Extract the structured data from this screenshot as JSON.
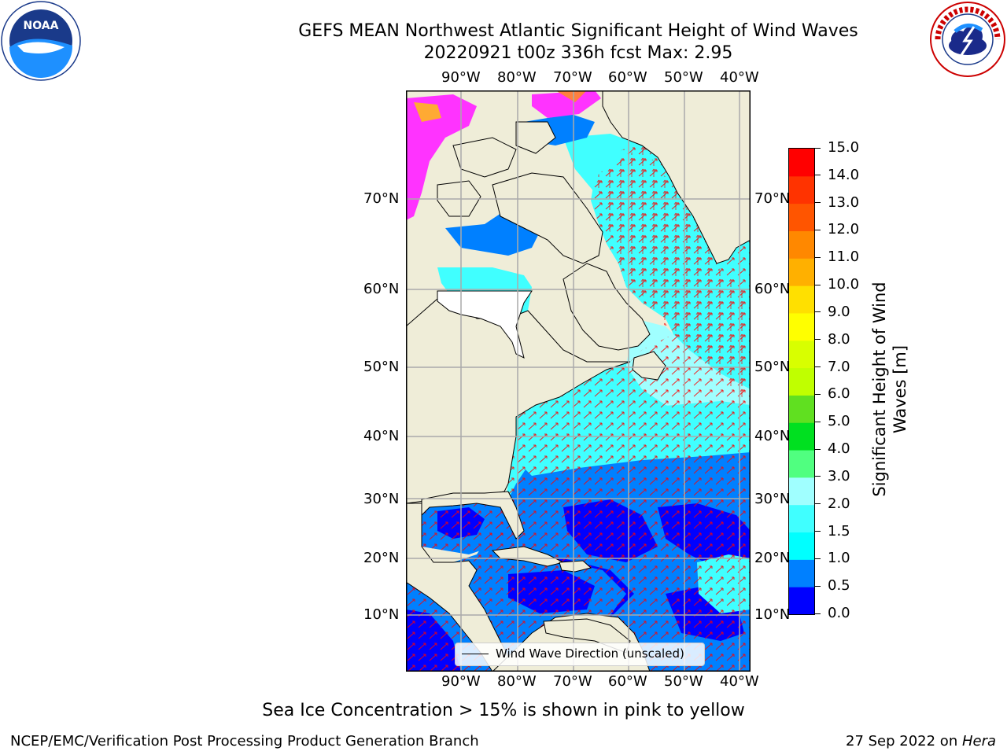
{
  "title": {
    "line1": "GEFS MEAN Northwest Atlantic Significant Height of Wind Waves",
    "line2": "20220921 t00z 336h fcst   Max: 2.95"
  },
  "map": {
    "lon_labels": [
      "90°W",
      "80°W",
      "70°W",
      "60°W",
      "50°W",
      "40°W"
    ],
    "lat_labels": [
      "70°N",
      "60°N",
      "50°N",
      "40°N",
      "30°N",
      "20°N",
      "10°N"
    ],
    "legend": "Wind Wave Direction (unscaled)",
    "colors": {
      "land": "#efedd8",
      "ocean_low": "#0000ff",
      "ocean_mid": "#0080ff",
      "ocean_hi": "#00ffff",
      "ice": "#ff33ff",
      "arrow": "#ff0000",
      "grid": "#aaaaaa"
    }
  },
  "colorbar": {
    "label_line1": "Significant Height of Wind",
    "label_line2": "Waves [m]",
    "ticks": [
      "0.0",
      "0.5",
      "1.0",
      "1.5",
      "2.0",
      "3.0",
      "4.0",
      "5.0",
      "6.0",
      "7.0",
      "8.0",
      "9.0",
      "10.0",
      "11.0",
      "12.0",
      "13.0",
      "14.0",
      "15.0"
    ],
    "colors": [
      "#0000ff",
      "#0080ff",
      "#00ffff",
      "#40ffff",
      "#a0ffff",
      "#50ff80",
      "#00e020",
      "#60e020",
      "#c0ff00",
      "#d8ff00",
      "#ffff00",
      "#ffe000",
      "#ffb000",
      "#ff8800",
      "#ff5500",
      "#ff3300",
      "#ff0000"
    ]
  },
  "footer": {
    "note": "Sea Ice Concentration > 15% is shown in pink to yellow",
    "org": "NCEP/EMC/Verification Post Processing Product Generation Branch",
    "date": "27 Sep 2022 on ",
    "machine": "Hera"
  },
  "logos": {
    "noaa": "NOAA",
    "nws": "NATIONAL WEATHER SERVICE"
  }
}
